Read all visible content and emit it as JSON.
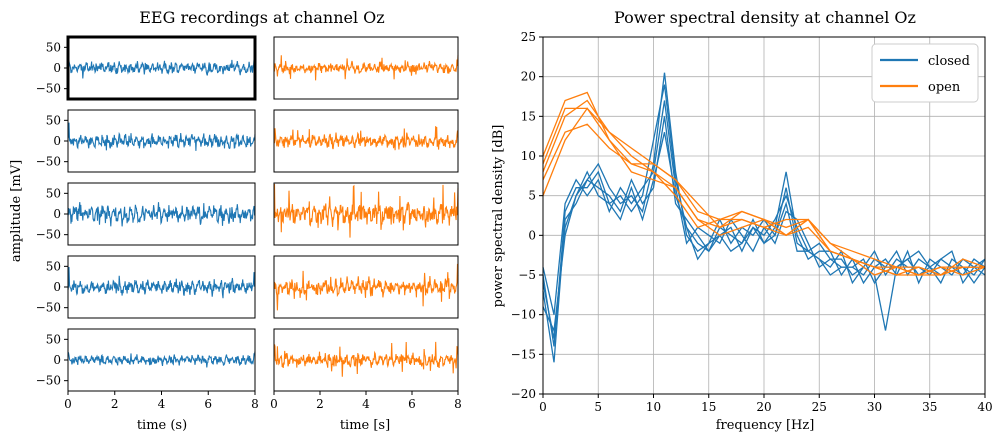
{
  "colors": {
    "closed": "#1f77b4",
    "open": "#ff7f0e",
    "grid": "#b0b0b0",
    "axis": "#000000"
  },
  "eeg": {
    "title": "EEG recordings at channel Oz",
    "ylabel": "amplitude [mV]",
    "xlabel_left": "time (s)",
    "xlabel_right": "time [s]",
    "x_ticks": [
      "0",
      "2",
      "4",
      "6",
      "8"
    ],
    "y_ticks": [
      "50",
      "0",
      "−50"
    ],
    "xlim": [
      0,
      8
    ],
    "ylim": [
      -75,
      75
    ],
    "selected_panel": "closed-1",
    "closed_amplitudes": [
      14,
      18,
      24,
      20,
      13
    ],
    "open_amplitudes": [
      14,
      16,
      28,
      22,
      18
    ]
  },
  "chart_data": [
    {
      "type": "line",
      "title": "EEG recordings at channel Oz",
      "xlabel": "time (s) / time [s]",
      "ylabel": "amplitude [mV]",
      "xlim": [
        0,
        8
      ],
      "ylim": [
        -75,
        75
      ],
      "grid": false,
      "note": "5 rows x 2 columns of raw EEG traces; left column closed (blue), right column open (orange)"
    },
    {
      "type": "line",
      "title": "Power spectral density at channel Oz",
      "xlabel": "frequency [Hz]",
      "ylabel": "power spectral density [dB]",
      "xlim": [
        0,
        40
      ],
      "ylim": [
        -20,
        25
      ],
      "x_ticks": [
        "0",
        "5",
        "10",
        "15",
        "20",
        "25",
        "30",
        "35",
        "40"
      ],
      "y_ticks": [
        "25",
        "20",
        "15",
        "10",
        "5",
        "0",
        "−5",
        "−10",
        "−15",
        "−20"
      ],
      "grid": true,
      "legend_position": "top-right",
      "legend": [
        "closed",
        "open"
      ],
      "series": [
        {
          "name": "closed",
          "color": "#1f77b4",
          "x": [
            0,
            1,
            2,
            3,
            4,
            5,
            6,
            7,
            8,
            9,
            10,
            11,
            12,
            13,
            14,
            15,
            16,
            17,
            18,
            19,
            20,
            21,
            22,
            23,
            24,
            25,
            26,
            27,
            28,
            29,
            30,
            31,
            32,
            33,
            34,
            35,
            36,
            37,
            38,
            39,
            40
          ],
          "values": [
            -5,
            -14,
            3,
            6,
            6,
            8,
            4,
            5,
            3,
            5,
            12,
            19,
            7,
            1,
            -1,
            -2,
            0,
            -2,
            -1,
            1,
            0,
            2,
            5,
            1,
            -2,
            -1,
            -3,
            -4,
            -4,
            -5,
            -3,
            -4,
            -4,
            -3,
            -5,
            -4,
            -3,
            -4,
            -5,
            -3,
            -4
          ]
        },
        {
          "name": "closed",
          "color": "#1f77b4",
          "x": [
            0,
            1,
            2,
            3,
            4,
            5,
            6,
            7,
            8,
            9,
            10,
            11,
            12,
            13,
            14,
            15,
            16,
            17,
            18,
            19,
            20,
            21,
            22,
            23,
            24,
            25,
            26,
            27,
            28,
            29,
            30,
            31,
            32,
            33,
            34,
            35,
            36,
            37,
            38,
            39,
            40
          ],
          "values": [
            -9,
            -12,
            0,
            5,
            7,
            9,
            6,
            4,
            5,
            3,
            9,
            20.5,
            8,
            0,
            -2,
            -1,
            2,
            -1,
            1,
            0,
            2,
            0,
            4,
            -2,
            -2,
            -3,
            -4,
            -2,
            -6,
            -4,
            -5,
            -12,
            -4,
            -3,
            -2,
            -4,
            -6,
            -3,
            -4,
            -5,
            -3
          ]
        },
        {
          "name": "closed",
          "color": "#1f77b4",
          "x": [
            0,
            1,
            2,
            3,
            4,
            5,
            6,
            7,
            8,
            9,
            10,
            11,
            12,
            13,
            14,
            15,
            16,
            17,
            18,
            19,
            20,
            21,
            22,
            23,
            24,
            25,
            26,
            27,
            28,
            29,
            30,
            31,
            32,
            33,
            34,
            35,
            36,
            37,
            38,
            39,
            40
          ],
          "values": [
            -7,
            -16,
            2,
            4,
            7,
            6,
            5,
            3,
            7,
            4,
            6,
            15,
            4,
            2,
            0,
            -2,
            1,
            0,
            -1,
            2,
            -1,
            1,
            8,
            0,
            -3,
            -2,
            -2,
            -5,
            -3,
            -6,
            -4,
            -3,
            -5,
            -2,
            -6,
            -3,
            -4,
            -5,
            -3,
            -4,
            -5
          ]
        },
        {
          "name": "closed",
          "color": "#1f77b4",
          "x": [
            0,
            1,
            2,
            3,
            4,
            5,
            6,
            7,
            8,
            9,
            10,
            11,
            12,
            13,
            14,
            15,
            16,
            17,
            18,
            19,
            20,
            21,
            22,
            23,
            24,
            25,
            26,
            27,
            28,
            29,
            30,
            31,
            32,
            33,
            34,
            35,
            36,
            37,
            38,
            39,
            40
          ],
          "values": [
            -4,
            -10,
            4,
            7,
            5,
            7,
            3,
            6,
            4,
            6,
            8,
            17,
            6,
            -1,
            1,
            0,
            -1,
            2,
            0,
            -2,
            1,
            -1,
            3,
            2,
            -1,
            -4,
            -3,
            -3,
            -5,
            -4,
            -2,
            -5,
            -3,
            -4,
            -4,
            -5,
            -3,
            -2,
            -6,
            -4,
            -3
          ]
        },
        {
          "name": "closed",
          "color": "#1f77b4",
          "x": [
            0,
            1,
            2,
            3,
            4,
            5,
            6,
            7,
            8,
            9,
            10,
            11,
            12,
            13,
            14,
            15,
            16,
            17,
            18,
            19,
            20,
            21,
            22,
            23,
            24,
            25,
            26,
            27,
            28,
            29,
            30,
            31,
            32,
            33,
            34,
            35,
            36,
            37,
            38,
            39,
            40
          ],
          "values": [
            -6,
            -13,
            1,
            5,
            8,
            5,
            4,
            2,
            6,
            2,
            7,
            13,
            5,
            1,
            -3,
            -1,
            0,
            1,
            -2,
            1,
            -1,
            0,
            6,
            -1,
            -2,
            -3,
            -5,
            -4,
            -4,
            -3,
            -6,
            -4,
            -2,
            -5,
            -3,
            -4,
            -5,
            -4,
            -4,
            -6,
            -4
          ]
        },
        {
          "name": "open",
          "color": "#ff7f0e",
          "x": [
            0,
            2,
            4,
            6,
            8,
            10,
            12,
            14,
            16,
            18,
            20,
            22,
            24,
            26,
            28,
            30,
            32,
            34,
            36,
            38,
            40
          ],
          "values": [
            5,
            12,
            16,
            12,
            9,
            8,
            6,
            2,
            1,
            2,
            1,
            0,
            2,
            -2,
            -3,
            -4,
            -5,
            -5,
            -4,
            -4,
            -4
          ]
        },
        {
          "name": "open",
          "color": "#ff7f0e",
          "x": [
            0,
            2,
            4,
            6,
            8,
            10,
            12,
            14,
            16,
            18,
            20,
            22,
            24,
            26,
            28,
            30,
            32,
            34,
            36,
            38,
            40
          ],
          "values": [
            9,
            16,
            16,
            13,
            10,
            8,
            5,
            1,
            2,
            3,
            2,
            1,
            2,
            -1,
            -3,
            -5,
            -4,
            -5,
            -5,
            -4,
            -4
          ]
        },
        {
          "name": "open",
          "color": "#ff7f0e",
          "x": [
            0,
            2,
            4,
            6,
            8,
            10,
            12,
            14,
            16,
            18,
            20,
            22,
            24,
            26,
            28,
            30,
            32,
            34,
            36,
            38,
            40
          ],
          "values": [
            10,
            17,
            18,
            12,
            8,
            7,
            6,
            2,
            0,
            1,
            2,
            0,
            1,
            -2,
            -3,
            -4,
            -4,
            -5,
            -4,
            -5,
            -4
          ]
        },
        {
          "name": "open",
          "color": "#ff7f0e",
          "x": [
            0,
            2,
            4,
            6,
            8,
            10,
            12,
            14,
            16,
            18,
            20,
            22,
            24,
            26,
            28,
            30,
            32,
            34,
            36,
            38,
            40
          ],
          "values": [
            7,
            13,
            14,
            11,
            9,
            9,
            7,
            3,
            2,
            2,
            1,
            2,
            2,
            -1,
            -2,
            -3,
            -4,
            -4,
            -5,
            -3,
            -4
          ]
        },
        {
          "name": "open",
          "color": "#ff7f0e",
          "x": [
            0,
            2,
            4,
            6,
            8,
            10,
            12,
            14,
            16,
            18,
            20,
            22,
            24,
            26,
            28,
            30,
            32,
            34,
            36,
            38,
            40
          ],
          "values": [
            8,
            15,
            17,
            13,
            11,
            9,
            7,
            4,
            1,
            3,
            2,
            0,
            2,
            -2,
            -3,
            -4,
            -5,
            -4,
            -5,
            -4,
            -4
          ]
        }
      ]
    }
  ]
}
